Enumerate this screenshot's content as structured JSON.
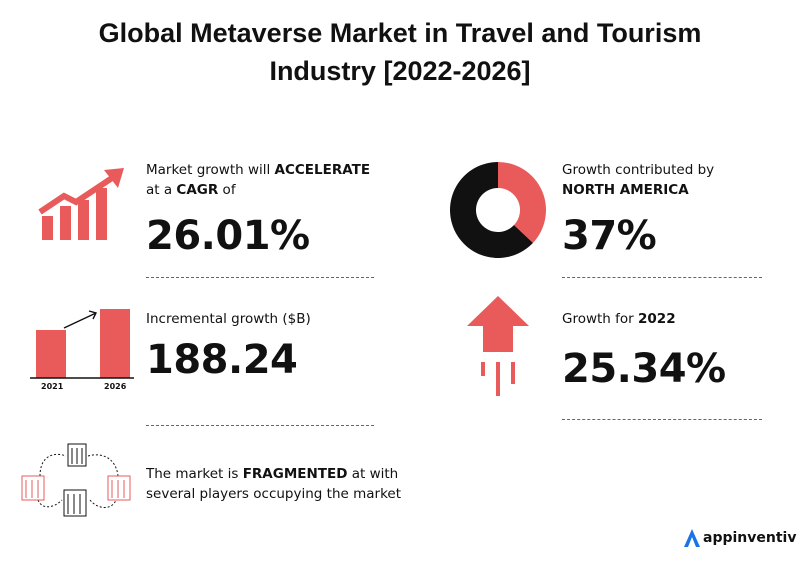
{
  "title_line1": "Global Metaverse Market in Travel and Tourism",
  "title_line2": "Industry [2022-2026]",
  "cagr": {
    "text_pre": "Market growth will ",
    "text_bold": "ACCELERATE",
    "line2_pre": "at a ",
    "line2_bold": "CAGR",
    "line2_post": " of",
    "value": "26.01%"
  },
  "north_america": {
    "line1": "Growth contributed by",
    "line2_bold": "NORTH AMERICA",
    "value": "37%"
  },
  "incremental": {
    "label": "Incremental growth ($B)",
    "value": "188.24"
  },
  "growth_2022": {
    "text_pre": "Growth for ",
    "text_bold": "2022",
    "value": "25.34%"
  },
  "fragmented": {
    "line1_pre": "The market is ",
    "line1_bold": "FRAGMENTED",
    "line1_post": " at with",
    "line2": "several players occupying the market"
  },
  "brand": {
    "name": "appinventiv"
  },
  "colors": {
    "accent": "#e95b5b",
    "dark": "#111111"
  },
  "chart_data": [
    {
      "type": "pie",
      "values": [
        37,
        63
      ],
      "highlight_index": 0
    },
    {
      "type": "bar",
      "categories": [
        "2021",
        "2026"
      ],
      "values": [
        null,
        null
      ]
    }
  ]
}
